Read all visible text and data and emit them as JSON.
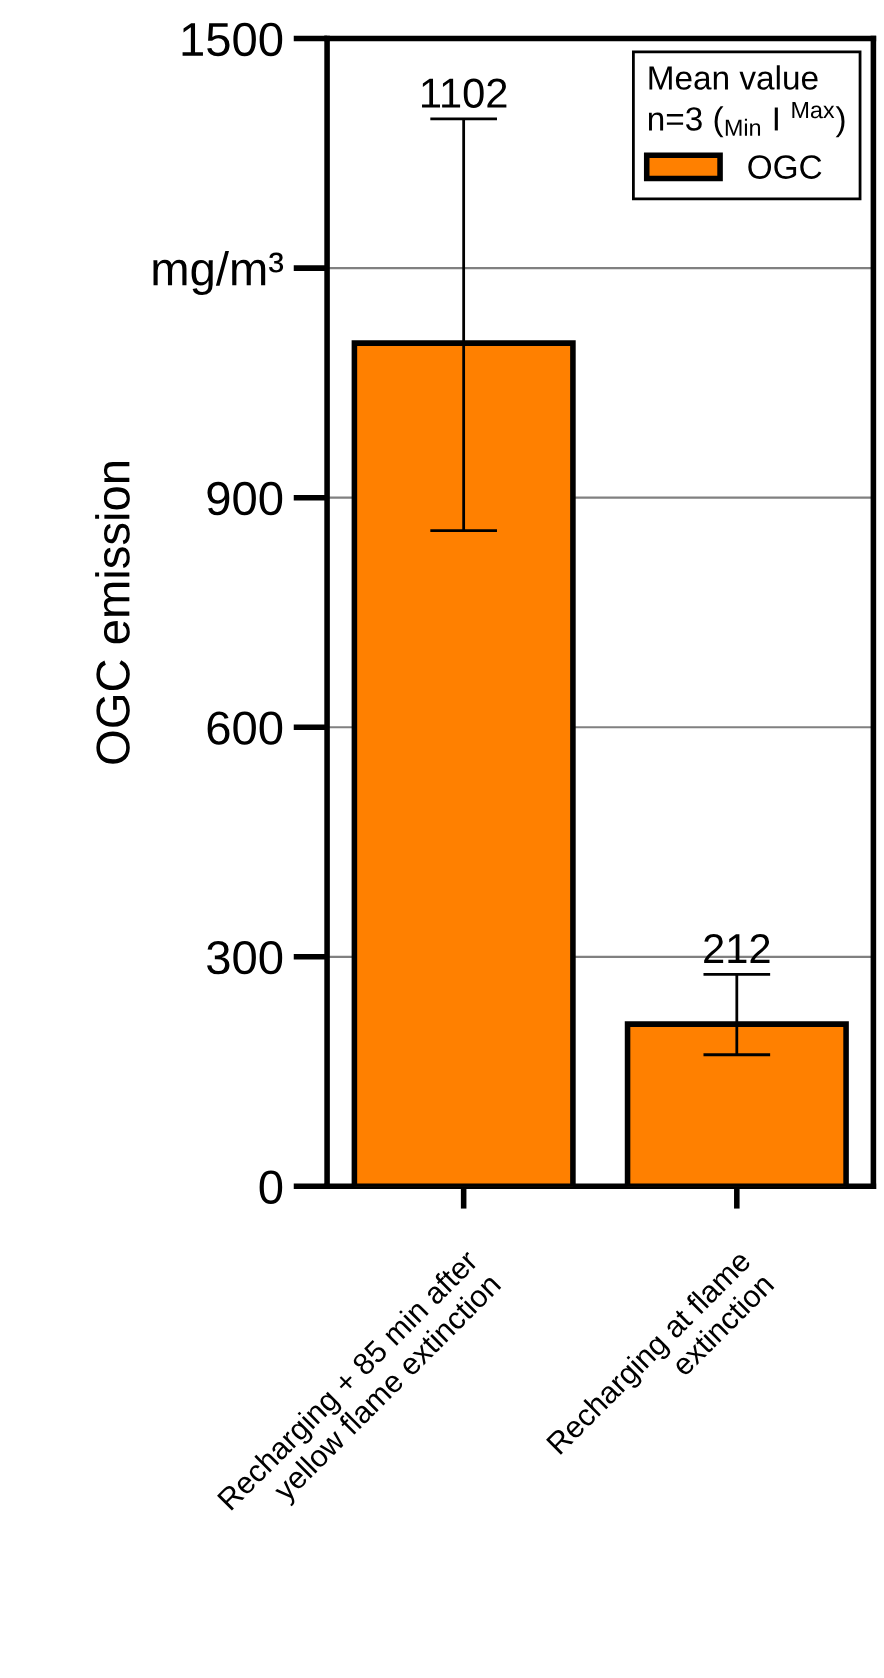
{
  "chart_data": {
    "type": "bar",
    "ylabel": "OGC emission",
    "legend_title": "Mean value\nn=3 ($_{Min}$ I $^{Max}$)",
    "categories": [
      "Recharging + 85 min after\nyellow flame extinction",
      "Recharging at flame\nextinction"
    ],
    "series": [
      {
        "name": "OGC",
        "color": "#ff8000",
        "values": [
          1102,
          212
        ],
        "errors": [
          [
            857,
            1395
          ],
          [
            172,
            277
          ]
        ]
      }
    ],
    "ylim": [
      0,
      1500
    ],
    "yticks": [
      0,
      300,
      600,
      900,
      {
        "value": 1200,
        "label": "mg/m³"
      },
      1500
    ],
    "grid": "y",
    "legend": "top right",
    "annotations": [
      {
        "text": "1102",
        "x": "Recharging + 85 min after\nyellow flame extinction",
        "y": 1395
      },
      {
        "text": "212",
        "x": "Recharging at flame\nextinction",
        "y": 277
      }
    ]
  }
}
